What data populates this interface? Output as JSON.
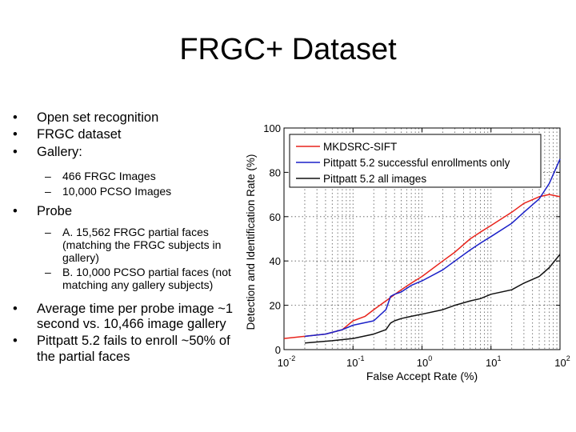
{
  "slide": {
    "title": "FRGC+ Dataset",
    "bullets": {
      "open_set": "Open set recognition",
      "frgc": "FRGC dataset",
      "gallery": "Gallery:",
      "gallery_a": "466 FRGC Images",
      "gallery_b": "10,000 PCSO Images",
      "probe": "Probe",
      "probe_a": "A. 15,562 FRGC partial faces (matching the FRGC subjects in gallery)",
      "probe_b": "B. 10,000 PCSO partial faces (not matching any gallery subjects)",
      "avg_time": "Average time per probe image ~1 second vs. 10,466 image gallery",
      "pittpatt": "Pittpatt 5.2 fails to enroll ~50% of the partial faces"
    }
  },
  "chart_data": {
    "type": "line",
    "xlabel": "False Accept Rate (%)",
    "ylabel": "Detection and Identification Rate (%)",
    "xscale": "log",
    "xlim": [
      0.01,
      100
    ],
    "ylim": [
      0,
      100
    ],
    "yticks": [
      0,
      20,
      40,
      60,
      80,
      100
    ],
    "xticks": [
      {
        "value": 0.01,
        "base": "10",
        "exp": "-2"
      },
      {
        "value": 0.1,
        "base": "10",
        "exp": "-1"
      },
      {
        "value": 1,
        "base": "10",
        "exp": "0"
      },
      {
        "value": 10,
        "base": "10",
        "exp": "1"
      },
      {
        "value": 100,
        "base": "10",
        "exp": "2"
      }
    ],
    "grid": true,
    "legend_position": "top-right",
    "series": [
      {
        "name": "MKDSRC-SIFT",
        "color": "#e8241c",
        "x": [
          0.01,
          0.02,
          0.04,
          0.07,
          0.1,
          0.15,
          0.2,
          0.3,
          0.5,
          0.7,
          1,
          2,
          3,
          5,
          7,
          10,
          20,
          30,
          50,
          70,
          100
        ],
        "y": [
          5,
          6,
          7,
          9,
          13,
          15,
          18,
          22,
          27,
          30,
          33,
          40,
          44,
          50,
          53,
          56,
          62,
          66,
          69,
          70,
          69
        ]
      },
      {
        "name": "Pittpatt 5.2 successful enrollments only",
        "color": "#1a20c8",
        "x": [
          0.02,
          0.04,
          0.07,
          0.1,
          0.2,
          0.3,
          0.35,
          0.4,
          0.5,
          0.7,
          1,
          2,
          3,
          5,
          7,
          10,
          20,
          30,
          50,
          70,
          100
        ],
        "y": [
          6,
          7,
          9,
          11,
          13,
          18,
          24,
          25,
          26,
          29,
          31,
          36,
          40,
          45,
          48,
          51,
          57,
          62,
          68,
          75,
          86
        ]
      },
      {
        "name": "Pittpatt 5.2 all images",
        "color": "#111111",
        "x": [
          0.02,
          0.05,
          0.1,
          0.2,
          0.3,
          0.35,
          0.4,
          0.5,
          0.7,
          1,
          2,
          3,
          5,
          7,
          10,
          20,
          30,
          50,
          70,
          100
        ],
        "y": [
          3,
          4,
          5,
          7,
          9,
          12,
          13,
          14,
          15,
          16,
          18,
          20,
          22,
          23,
          25,
          27,
          30,
          33,
          37,
          43
        ]
      }
    ]
  }
}
